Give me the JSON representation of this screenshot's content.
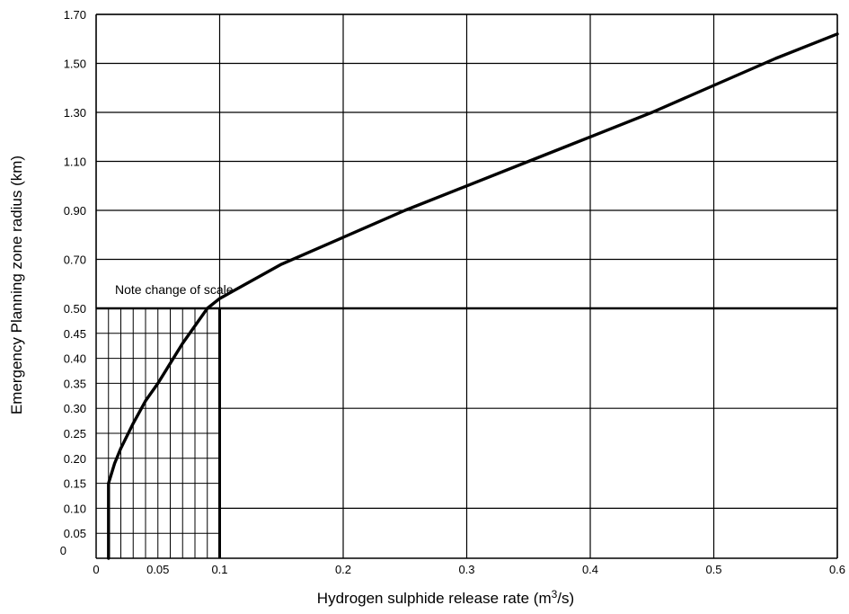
{
  "chart_data": {
    "type": "line",
    "title": "",
    "xlabel_main": "Hydrogen sulphide release rate (m",
    "xlabel_sup": "3",
    "xlabel_end": "/s)",
    "ylabel": "Emergency Planning zone radius (km)",
    "note": "Note change of scale",
    "x_major_ticks": [
      {
        "value": 0,
        "label": "0"
      },
      {
        "value": 0.1,
        "label": "0.1"
      },
      {
        "value": 0.2,
        "label": "0.2"
      },
      {
        "value": 0.3,
        "label": "0.3"
      },
      {
        "value": 0.4,
        "label": "0.4"
      },
      {
        "value": 0.5,
        "label": "0.5"
      },
      {
        "value": 0.6,
        "label": "0.6"
      }
    ],
    "x_inset_ticks": [
      {
        "value": 0.05,
        "label": "0.05"
      }
    ],
    "y_upper_ticks": [
      {
        "value": 0.5,
        "label": "0.50"
      },
      {
        "value": 0.7,
        "label": "0.70"
      },
      {
        "value": 0.9,
        "label": "0.90"
      },
      {
        "value": 1.1,
        "label": "1.10"
      },
      {
        "value": 1.3,
        "label": "1.30"
      },
      {
        "value": 1.5,
        "label": "1.50"
      },
      {
        "value": 1.7,
        "label": "1.70"
      }
    ],
    "y_lower_ticks": [
      {
        "value": 0,
        "label": "0"
      },
      {
        "value": 0.05,
        "label": "0.05"
      },
      {
        "value": 0.1,
        "label": "0.10"
      },
      {
        "value": 0.15,
        "label": "0.15"
      },
      {
        "value": 0.2,
        "label": "0.20"
      },
      {
        "value": 0.25,
        "label": "0.25"
      },
      {
        "value": 0.3,
        "label": "0.30"
      },
      {
        "value": 0.35,
        "label": "0.35"
      },
      {
        "value": 0.4,
        "label": "0.40"
      },
      {
        "value": 0.45,
        "label": "0.45"
      },
      {
        "value": 0.5,
        "label": "0.50"
      }
    ],
    "xlim": [
      0,
      0.6
    ],
    "ylim_upper": [
      0.5,
      1.7
    ],
    "ylim_lower": [
      0,
      0.5
    ],
    "inset_xlim": [
      0,
      0.1
    ],
    "inset_x_step": 0.01,
    "inset_y_step": 0.05,
    "series": [
      {
        "values_inset": [
          {
            "x": 0.01,
            "y": 0
          },
          {
            "x": 0.01,
            "y": 0.15
          },
          {
            "x": 0.015,
            "y": 0.19
          },
          {
            "x": 0.02,
            "y": 0.22
          },
          {
            "x": 0.03,
            "y": 0.27
          },
          {
            "x": 0.04,
            "y": 0.315
          },
          {
            "x": 0.05,
            "y": 0.35
          },
          {
            "x": 0.06,
            "y": 0.39
          },
          {
            "x": 0.07,
            "y": 0.43
          },
          {
            "x": 0.08,
            "y": 0.465
          },
          {
            "x": 0.09,
            "y": 0.5
          }
        ],
        "values_main": [
          {
            "x": 0.09,
            "y": 0.5
          },
          {
            "x": 0.1,
            "y": 0.54
          },
          {
            "x": 0.15,
            "y": 0.68
          },
          {
            "x": 0.2,
            "y": 0.79
          },
          {
            "x": 0.25,
            "y": 0.9
          },
          {
            "x": 0.3,
            "y": 1.0
          },
          {
            "x": 0.35,
            "y": 1.1
          },
          {
            "x": 0.4,
            "y": 1.2
          },
          {
            "x": 0.45,
            "y": 1.3
          },
          {
            "x": 0.5,
            "y": 1.41
          },
          {
            "x": 0.55,
            "y": 1.52
          },
          {
            "x": 0.6,
            "y": 1.62
          }
        ]
      }
    ]
  }
}
